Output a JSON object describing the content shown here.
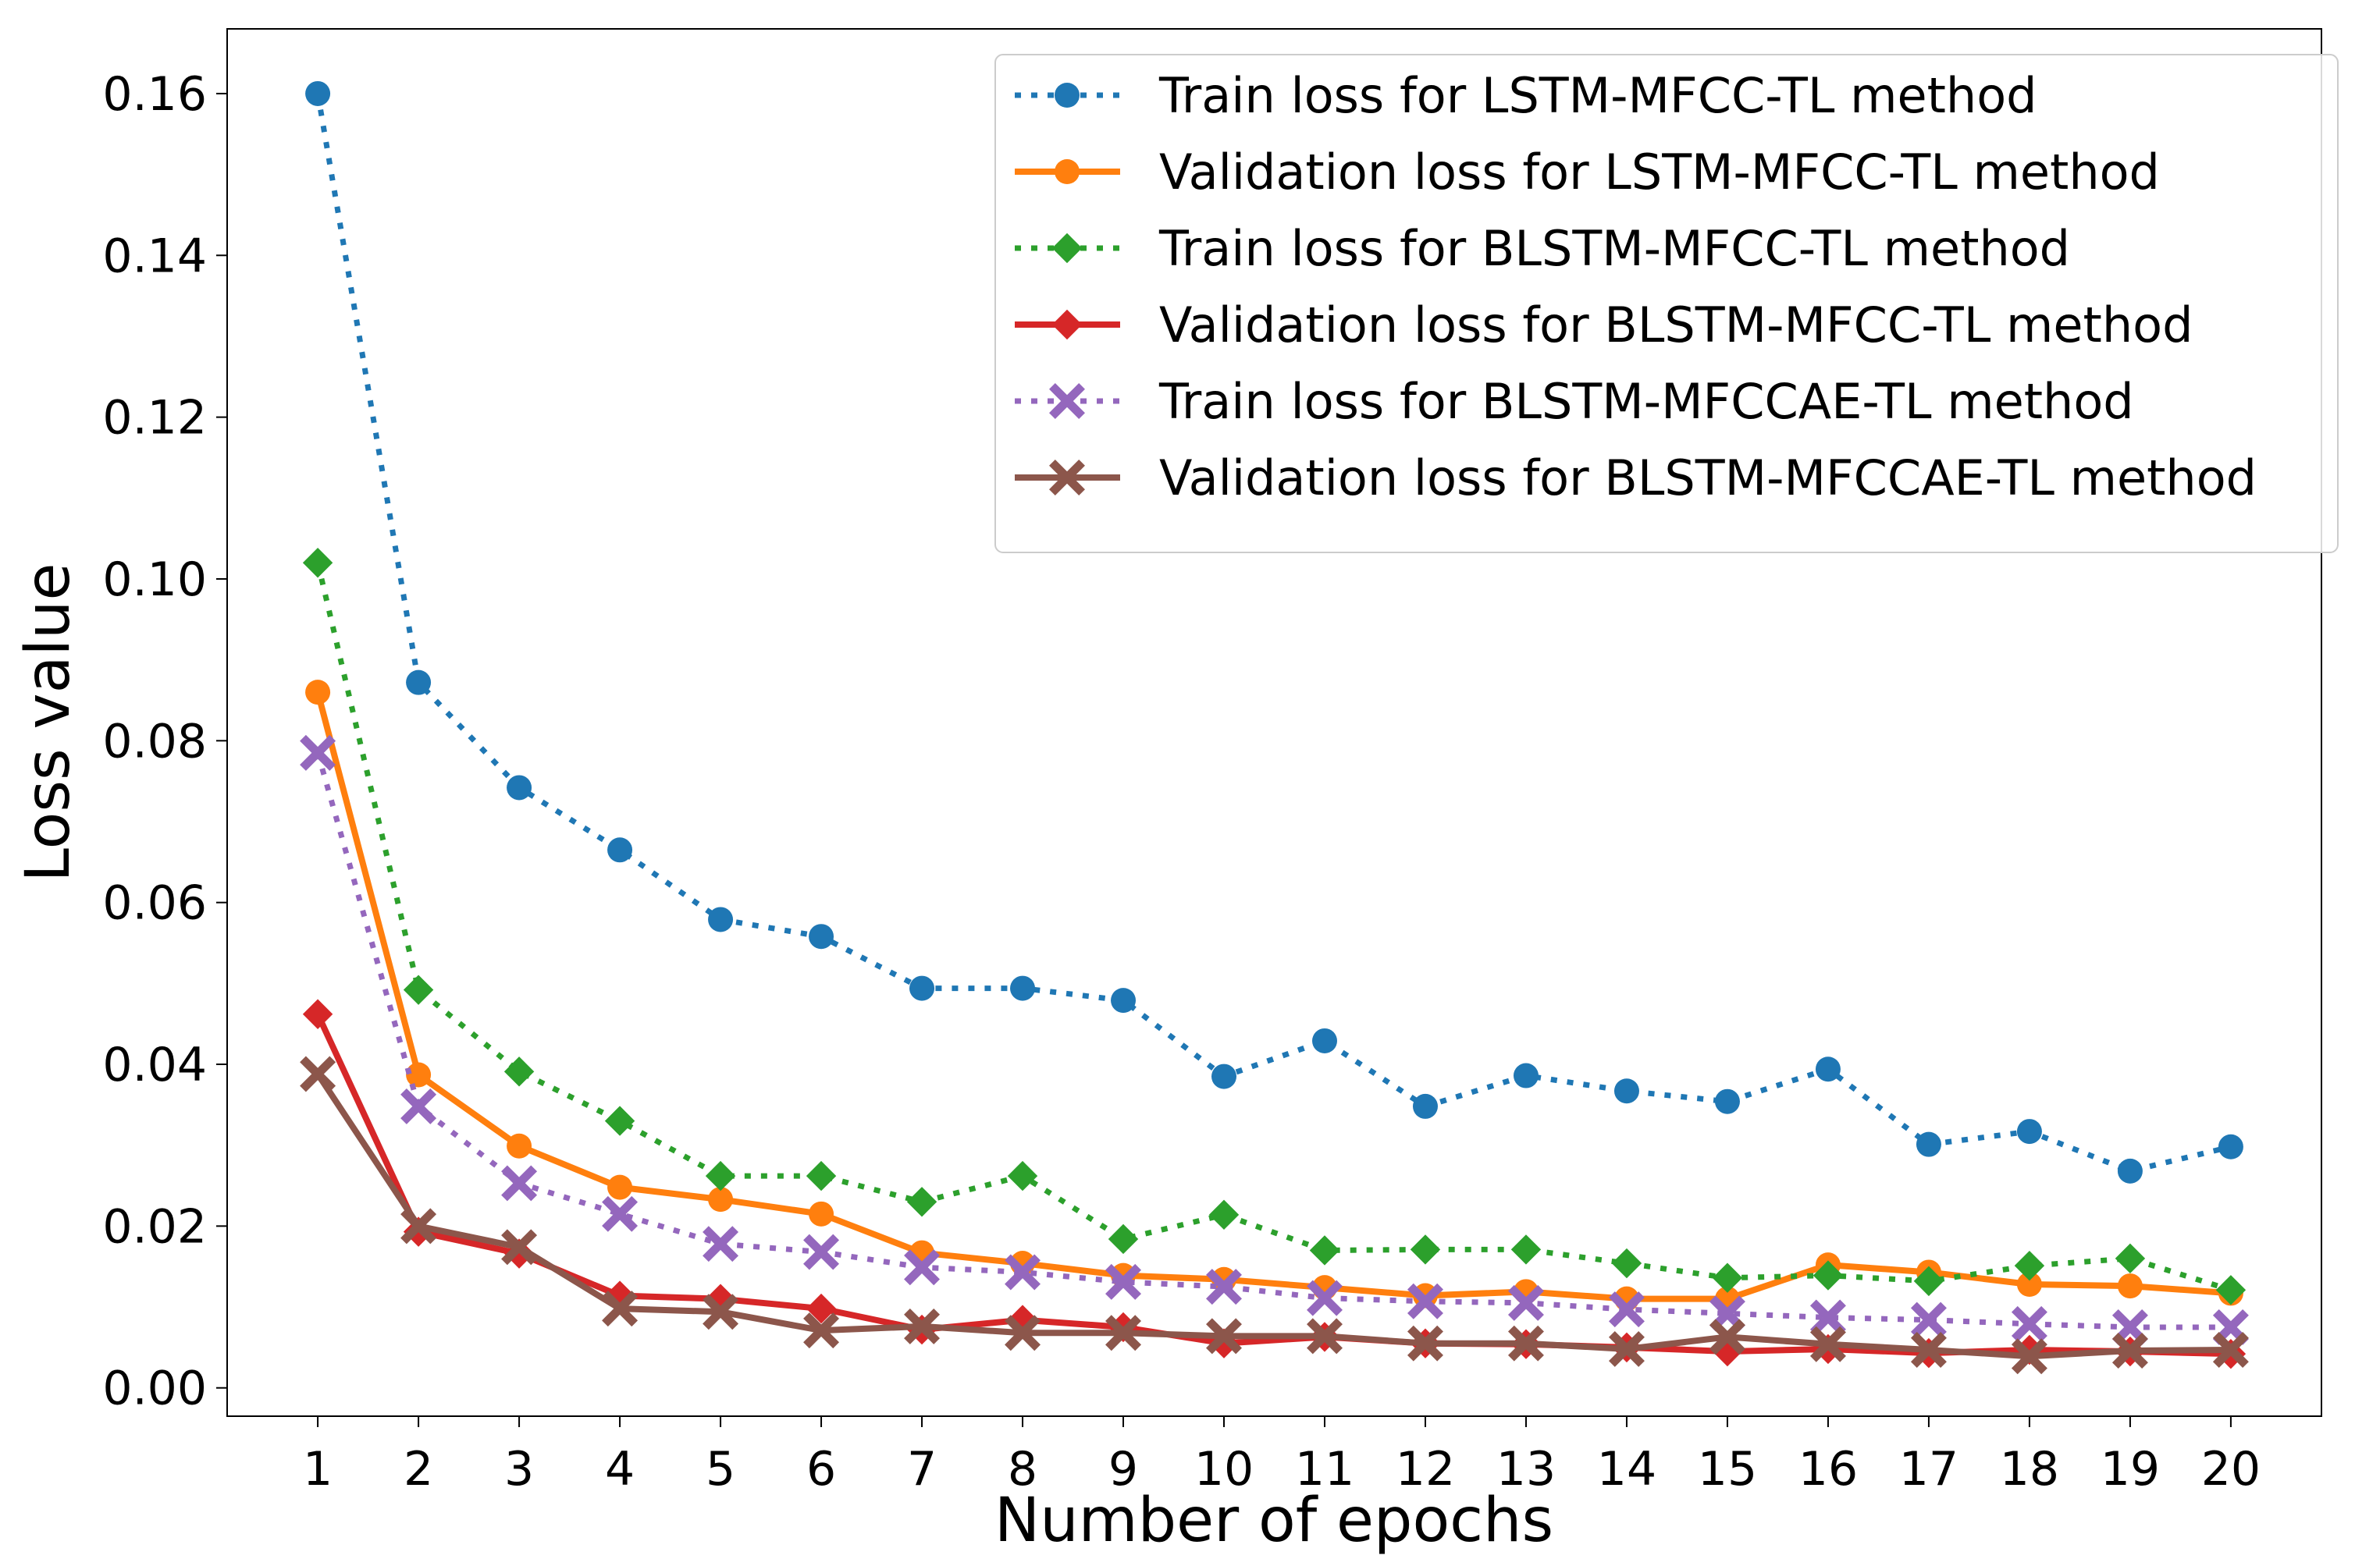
{
  "chart_data": {
    "type": "line",
    "title": "",
    "xlabel": "Number of epochs",
    "ylabel": "Loss value",
    "x": [
      1,
      2,
      3,
      4,
      5,
      6,
      7,
      8,
      9,
      10,
      11,
      12,
      13,
      14,
      15,
      16,
      17,
      18,
      19,
      20
    ],
    "xticks": [
      "1",
      "2",
      "3",
      "4",
      "5",
      "6",
      "7",
      "8",
      "9",
      "10",
      "11",
      "12",
      "13",
      "14",
      "15",
      "16",
      "17",
      "18",
      "19",
      "20"
    ],
    "xlim": [
      0.1,
      20.9
    ],
    "ylim": [
      -0.0035,
      0.168
    ],
    "yticks": [
      "0.00",
      "0.02",
      "0.04",
      "0.06",
      "0.08",
      "0.10",
      "0.12",
      "0.14",
      "0.16"
    ],
    "ytick_values": [
      0.0,
      0.02,
      0.04,
      0.06,
      0.08,
      0.1,
      0.12,
      0.14,
      0.16
    ],
    "grid": false,
    "legend_position": "top-right",
    "series": [
      {
        "name": "Train loss for LSTM-MFCC-TL method",
        "color": "#1f77b4",
        "linestyle": "dotted",
        "marker": "circle",
        "values": [
          0.16,
          0.0872,
          0.0742,
          0.0665,
          0.0579,
          0.0558,
          0.0494,
          0.0494,
          0.0479,
          0.0385,
          0.0429,
          0.0348,
          0.0386,
          0.0367,
          0.0354,
          0.0394,
          0.0301,
          0.0317,
          0.0268,
          0.0298
        ]
      },
      {
        "name": "Validation loss for LSTM-MFCC-TL method",
        "color": "#ff7f0e",
        "linestyle": "solid",
        "marker": "circle",
        "values": [
          0.086,
          0.0387,
          0.0299,
          0.0248,
          0.0233,
          0.0215,
          0.0167,
          0.0154,
          0.0139,
          0.0134,
          0.0124,
          0.0114,
          0.0119,
          0.011,
          0.011,
          0.0152,
          0.0143,
          0.0128,
          0.0126,
          0.0117
        ]
      },
      {
        "name": "Train loss for BLSTM-MFCC-TL method",
        "color": "#2ca02c",
        "linestyle": "dotted",
        "marker": "diamond",
        "values": [
          0.102,
          0.0492,
          0.0391,
          0.033,
          0.0262,
          0.0262,
          0.023,
          0.0262,
          0.0184,
          0.0214,
          0.017,
          0.0171,
          0.0171,
          0.0154,
          0.0136,
          0.0139,
          0.0132,
          0.0151,
          0.016,
          0.0121
        ]
      },
      {
        "name": "Validation loss for BLSTM-MFCC-TL method",
        "color": "#d62728",
        "linestyle": "solid",
        "marker": "diamond",
        "values": [
          0.0462,
          0.0193,
          0.0166,
          0.0114,
          0.011,
          0.0098,
          0.0072,
          0.0084,
          0.0075,
          0.0055,
          0.0063,
          0.0055,
          0.0054,
          0.005,
          0.0045,
          0.0048,
          0.0043,
          0.0047,
          0.0045,
          0.0042
        ]
      },
      {
        "name": "Train loss for BLSTM-MFCCAE-TL method",
        "color": "#9467bd",
        "linestyle": "dotted",
        "marker": "x",
        "values": [
          0.0785,
          0.0348,
          0.0253,
          0.0215,
          0.0178,
          0.0168,
          0.0149,
          0.0143,
          0.0131,
          0.0125,
          0.0111,
          0.0107,
          0.0105,
          0.0097,
          0.0092,
          0.0087,
          0.0084,
          0.0079,
          0.0075,
          0.0075
        ]
      },
      {
        "name": "Validation loss for BLSTM-MFCCAE-TL method",
        "color": "#8c564b",
        "linestyle": "solid",
        "marker": "x",
        "values": [
          0.0388,
          0.02,
          0.0174,
          0.0098,
          0.0094,
          0.0071,
          0.0076,
          0.0068,
          0.0068,
          0.0064,
          0.0064,
          0.0055,
          0.0055,
          0.0048,
          0.0063,
          0.0054,
          0.0047,
          0.0039,
          0.0046,
          0.0047
        ]
      }
    ]
  }
}
